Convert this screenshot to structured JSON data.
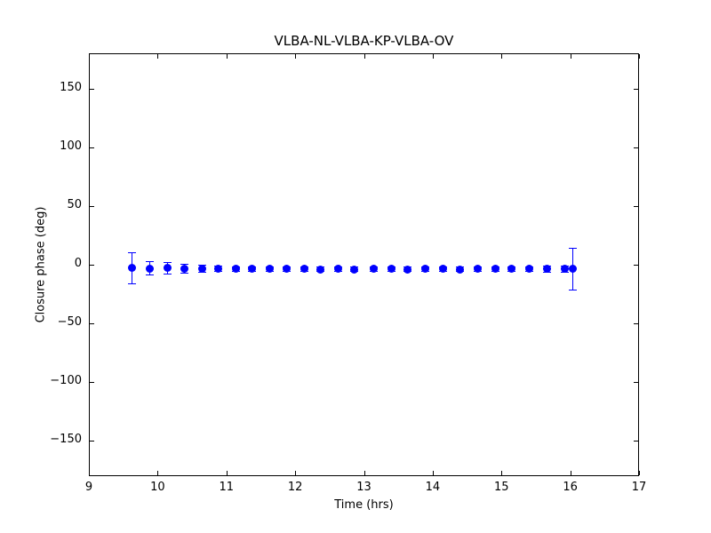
{
  "figure": {
    "background": "#ffffff",
    "axes_edge_color": "#000000",
    "text_color": "#000000"
  },
  "chart_data": {
    "type": "scatter",
    "title": "VLBA-NL-VLBA-KP-VLBA-OV",
    "xlabel": "Time (hrs)",
    "ylabel": "Closure phase (deg)",
    "xlim": [
      9,
      17
    ],
    "ylim": [
      -180,
      180
    ],
    "xticks": [
      9,
      10,
      11,
      12,
      13,
      14,
      15,
      16,
      17
    ],
    "yticks": [
      150,
      100,
      50,
      0,
      -50,
      -100,
      -150
    ],
    "grid": false,
    "legend": null,
    "marker_color": "#0000ff",
    "marker_style": "circle",
    "series": [
      {
        "name": "closure-phase",
        "x": [
          9.62,
          9.88,
          10.14,
          10.38,
          10.64,
          10.87,
          11.13,
          11.37,
          11.62,
          11.87,
          12.13,
          12.36,
          12.62,
          12.85,
          13.14,
          13.39,
          13.63,
          13.89,
          14.14,
          14.39,
          14.65,
          14.91,
          15.14,
          15.4,
          15.66,
          15.91,
          16.03
        ],
        "y": [
          -2.6,
          -2.9,
          -2.4,
          -2.9,
          -3.0,
          -3.1,
          -3.2,
          -3.3,
          -3.4,
          -3.3,
          -3.4,
          -3.5,
          -3.4,
          -3.5,
          -3.4,
          -3.4,
          -3.5,
          -3.4,
          -3.4,
          -3.5,
          -3.4,
          -3.4,
          -3.3,
          -3.4,
          -3.3,
          -3.4,
          -3.4
        ],
        "yerr": [
          13.0,
          5.7,
          4.8,
          3.8,
          3.0,
          2.5,
          2.0,
          2.0,
          2.0,
          2.0,
          2.0,
          2.0,
          2.0,
          2.0,
          2.0,
          2.0,
          2.0,
          2.0,
          2.0,
          2.0,
          2.0,
          2.0,
          2.0,
          2.0,
          2.5,
          3.0,
          18.0
        ]
      }
    ]
  }
}
